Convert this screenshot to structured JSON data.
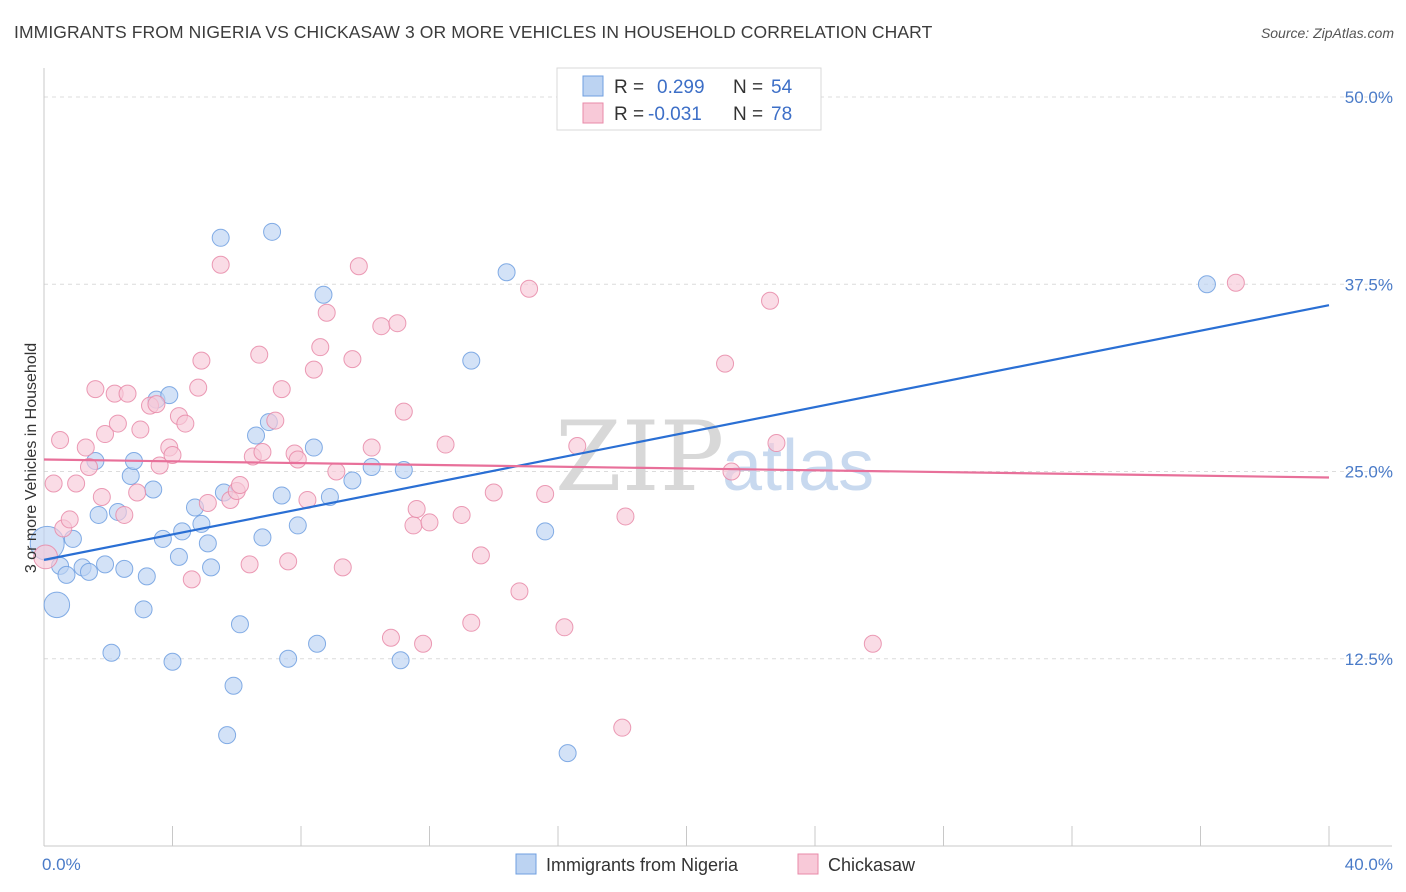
{
  "title": "IMMIGRANTS FROM NIGERIA VS CHICKASAW 3 OR MORE VEHICLES IN HOUSEHOLD CORRELATION CHART",
  "source": "Source: ZipAtlas.com",
  "colors": {
    "blue": "#6f9fe0",
    "blue_fill": "#bcd3f2",
    "blue_line": "#2a6fd4",
    "pink": "#e88aa8",
    "pink_fill": "#f8c9d8",
    "pink_line": "#e8709a",
    "axis_text": "#4a7bc8"
  },
  "legend": {
    "rows": [
      {
        "r_label": "R =",
        "r_value": "0.299",
        "n_label": "N =",
        "n_value": "54",
        "series": "blue"
      },
      {
        "r_label": "R =",
        "r_value": "-0.031",
        "n_label": "N =",
        "n_value": "78",
        "series": "pink"
      }
    ]
  },
  "bottom_legend": [
    "Immigrants from Nigeria",
    "Chickasaw"
  ],
  "watermark": {
    "zip": "ZIP",
    "atlas": "atlas"
  },
  "chart_data": {
    "type": "scatter",
    "ylabel": "3 or more Vehicles in Household",
    "xlim": [
      0,
      40
    ],
    "ylim": [
      0,
      52
    ],
    "x_tick_labels": [
      {
        "value": 0,
        "label": "0.0%"
      },
      {
        "value": 40,
        "label": "40.0%"
      }
    ],
    "y_tick_labels": [
      {
        "value": 12.5,
        "label": "12.5%"
      },
      {
        "value": 25,
        "label": "25.0%"
      },
      {
        "value": 37.5,
        "label": "37.5%"
      },
      {
        "value": 50,
        "label": "50.0%"
      }
    ],
    "grid": "horizontal dashed",
    "series": [
      {
        "name": "Immigrants from Nigeria",
        "color": "blue",
        "trend": {
          "x": [
            0,
            40
          ],
          "y": [
            19.1,
            36.1
          ]
        },
        "points": [
          [
            0.1,
            20.2,
            2
          ],
          [
            0.4,
            16.1,
            1.5
          ],
          [
            0.5,
            18.7,
            1
          ],
          [
            0.7,
            18.1,
            1
          ],
          [
            0.9,
            20.5,
            1
          ],
          [
            1.2,
            18.6,
            1
          ],
          [
            1.4,
            18.3,
            1
          ],
          [
            1.6,
            25.7,
            1
          ],
          [
            1.7,
            22.1,
            1
          ],
          [
            1.9,
            18.8,
            1
          ],
          [
            2.3,
            22.3,
            1
          ],
          [
            2.5,
            18.5,
            1
          ],
          [
            2.7,
            24.7,
            1
          ],
          [
            2.8,
            25.7,
            1
          ],
          [
            3.1,
            15.8,
            1
          ],
          [
            2.1,
            12.9,
            1
          ],
          [
            3.2,
            18.0,
            1
          ],
          [
            3.4,
            23.8,
            1
          ],
          [
            3.5,
            29.8,
            1
          ],
          [
            3.7,
            20.5,
            1
          ],
          [
            3.9,
            30.1,
            1
          ],
          [
            4.2,
            19.3,
            1
          ],
          [
            4.3,
            21.0,
            1
          ],
          [
            4.7,
            22.6,
            1
          ],
          [
            4.9,
            21.5,
            1
          ],
          [
            4.0,
            12.3,
            1
          ],
          [
            5.1,
            20.2,
            1
          ],
          [
            5.2,
            18.6,
            1
          ],
          [
            5.5,
            40.6,
            1
          ],
          [
            5.6,
            23.6,
            1
          ],
          [
            5.7,
            7.4,
            1
          ],
          [
            5.9,
            10.7,
            1
          ],
          [
            6.1,
            14.8,
            1
          ],
          [
            6.6,
            27.4,
            1
          ],
          [
            6.8,
            20.6,
            1
          ],
          [
            7.0,
            28.3,
            1
          ],
          [
            7.1,
            41.0,
            1
          ],
          [
            7.4,
            23.4,
            1
          ],
          [
            7.6,
            12.5,
            1
          ],
          [
            7.9,
            21.4,
            1
          ],
          [
            8.4,
            26.6,
            1
          ],
          [
            8.5,
            13.5,
            1
          ],
          [
            8.7,
            36.8,
            1
          ],
          [
            8.9,
            23.3,
            1
          ],
          [
            9.6,
            24.4,
            1
          ],
          [
            10.2,
            25.3,
            1
          ],
          [
            11.1,
            12.4,
            1
          ],
          [
            11.2,
            25.1,
            1
          ],
          [
            13.3,
            32.4,
            1
          ],
          [
            14.4,
            38.3,
            1
          ],
          [
            15.6,
            21.0,
            1
          ],
          [
            16.3,
            6.2,
            1
          ],
          [
            36.2,
            37.5,
            1
          ]
        ]
      },
      {
        "name": "Chickasaw",
        "color": "pink",
        "trend": {
          "x": [
            0,
            40
          ],
          "y": [
            25.8,
            24.6
          ]
        },
        "points": [
          [
            0.05,
            19.3,
            1.4
          ],
          [
            0.3,
            24.2,
            1
          ],
          [
            0.5,
            27.1,
            1
          ],
          [
            0.6,
            21.2,
            1
          ],
          [
            0.8,
            21.8,
            1
          ],
          [
            1.0,
            24.2,
            1
          ],
          [
            1.3,
            26.6,
            1
          ],
          [
            1.4,
            25.3,
            1
          ],
          [
            1.6,
            30.5,
            1
          ],
          [
            1.8,
            23.3,
            1
          ],
          [
            1.9,
            27.5,
            1
          ],
          [
            2.2,
            30.2,
            1
          ],
          [
            2.3,
            28.2,
            1
          ],
          [
            2.5,
            22.1,
            1
          ],
          [
            2.6,
            30.2,
            1
          ],
          [
            2.9,
            23.6,
            1
          ],
          [
            3.0,
            27.8,
            1
          ],
          [
            3.3,
            29.4,
            1
          ],
          [
            3.5,
            29.5,
            1
          ],
          [
            3.6,
            25.4,
            1
          ],
          [
            3.9,
            26.6,
            1
          ],
          [
            4.0,
            26.1,
            1
          ],
          [
            4.2,
            28.7,
            1
          ],
          [
            4.4,
            28.2,
            1
          ],
          [
            4.6,
            17.8,
            1
          ],
          [
            4.8,
            30.6,
            1
          ],
          [
            4.9,
            32.4,
            1
          ],
          [
            5.1,
            22.9,
            1
          ],
          [
            5.5,
            38.8,
            1
          ],
          [
            5.8,
            23.1,
            1
          ],
          [
            6.0,
            23.7,
            1
          ],
          [
            6.1,
            24.1,
            1
          ],
          [
            6.4,
            18.8,
            1
          ],
          [
            6.5,
            26.0,
            1
          ],
          [
            6.7,
            32.8,
            1
          ],
          [
            6.8,
            26.3,
            1
          ],
          [
            7.2,
            28.4,
            1
          ],
          [
            7.4,
            30.5,
            1
          ],
          [
            7.6,
            19.0,
            1
          ],
          [
            7.8,
            26.2,
            1
          ],
          [
            7.9,
            25.8,
            1
          ],
          [
            8.2,
            23.1,
            1
          ],
          [
            8.4,
            31.8,
            1
          ],
          [
            8.6,
            33.3,
            1
          ],
          [
            8.8,
            35.6,
            1
          ],
          [
            9.1,
            25.0,
            1
          ],
          [
            9.3,
            18.6,
            1
          ],
          [
            9.6,
            32.5,
            1
          ],
          [
            9.8,
            38.7,
            1
          ],
          [
            10.2,
            26.6,
            1
          ],
          [
            10.5,
            34.7,
            1
          ],
          [
            10.8,
            13.9,
            1
          ],
          [
            11.0,
            34.9,
            1
          ],
          [
            11.2,
            29.0,
            1
          ],
          [
            11.5,
            21.4,
            1
          ],
          [
            11.6,
            22.5,
            1
          ],
          [
            11.8,
            13.5,
            1
          ],
          [
            12.0,
            21.6,
            1
          ],
          [
            12.5,
            26.8,
            1
          ],
          [
            13.0,
            22.1,
            1
          ],
          [
            13.3,
            14.9,
            1
          ],
          [
            13.6,
            19.4,
            1
          ],
          [
            14.0,
            23.6,
            1
          ],
          [
            14.8,
            17.0,
            1
          ],
          [
            15.1,
            37.2,
            1
          ],
          [
            15.6,
            23.5,
            1
          ],
          [
            16.2,
            14.6,
            1
          ],
          [
            16.6,
            26.7,
            1
          ],
          [
            18.0,
            7.9,
            1
          ],
          [
            18.1,
            22.0,
            1
          ],
          [
            21.2,
            32.2,
            1
          ],
          [
            21.4,
            25.0,
            1
          ],
          [
            22.6,
            36.4,
            1
          ],
          [
            22.8,
            26.9,
            1
          ],
          [
            25.8,
            13.5,
            1
          ],
          [
            37.1,
            37.6,
            1
          ]
        ]
      }
    ]
  }
}
